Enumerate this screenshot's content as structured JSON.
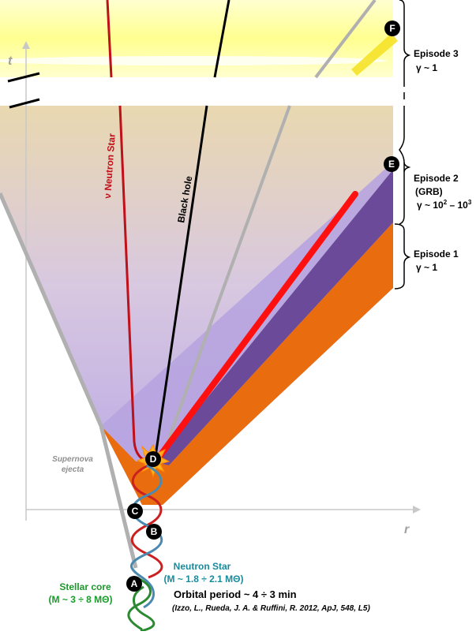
{
  "axes": {
    "time_label": "t",
    "radius_label": "r"
  },
  "labels": {
    "supernova_ejecta": [
      "Supernova",
      "ejecta"
    ],
    "nu_neutron_star": "ν Neutron Star",
    "black_hole": "Black hole",
    "stellar_core_name": "Stellar core",
    "stellar_core_mass": "(M ~ 3 ÷ 8 MΘ)",
    "neutron_star_name": "Neutron Star",
    "neutron_star_mass": "(M ~ 1.8 ÷ 2.1 MΘ)",
    "orbital_period": "Orbital period ~ 4 ÷ 3 min",
    "citation": "(Izzo, L., Rueda, J. A. & Ruffini, R. 2012, ApJ, 548, L5)"
  },
  "markers": {
    "A": "A",
    "B": "B",
    "C": "C",
    "D": "D",
    "E": "E",
    "F": "F"
  },
  "episodes": {
    "episode3": {
      "title": "Episode 3",
      "gamma": "γ ~ 1"
    },
    "episode2": {
      "title": "Episode 2",
      "subtitle": "(GRB)",
      "gamma_prefix": "γ ~ 10",
      "gamma_exp1": "2",
      "gamma_mid": " – 10",
      "gamma_exp2": "3"
    },
    "episode1": {
      "title": "Episode 1",
      "gamma": "γ ~ 1"
    }
  },
  "colors": {
    "orange": "#e96d0e",
    "purple_dark": "#6b4a9a",
    "purple_light": "#b7a4e0",
    "red_jet": "#ff1010",
    "nu_ns_line": "#c0101a",
    "bh_line": "#000000",
    "yellow_band": "#ffffc0",
    "helix_red": "#cc2020",
    "helix_blue": "#4a8ab0",
    "helix_green": "#2a8a30",
    "teal_text": "#1a8a9a",
    "green_text": "#1a9a2a"
  }
}
